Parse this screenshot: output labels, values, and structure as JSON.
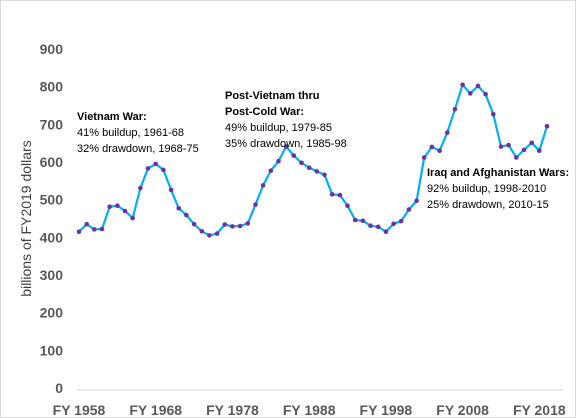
{
  "chart_data": {
    "type": "line",
    "ylabel": "billions of FY2019 dollars",
    "ylim": [
      0,
      900
    ],
    "yticks": [
      0,
      100,
      200,
      300,
      400,
      500,
      600,
      700,
      800,
      900
    ],
    "xlim": [
      1958,
      2019
    ],
    "xticks": [
      {
        "value": 1958,
        "label": "FY 1958"
      },
      {
        "value": 1968,
        "label": "FY 1968"
      },
      {
        "value": 1978,
        "label": "FY 1978"
      },
      {
        "value": 1988,
        "label": "FY 1988"
      },
      {
        "value": 1998,
        "label": "FY 1998"
      },
      {
        "value": 2008,
        "label": "FY 2008"
      },
      {
        "value": 2018,
        "label": "FY 2018"
      }
    ],
    "grid": false,
    "series": [
      {
        "color": "#00b0f0",
        "marker_color": "#7030a0",
        "x": [
          1958,
          1959,
          1960,
          1961,
          1962,
          1963,
          1964,
          1965,
          1966,
          1967,
          1968,
          1969,
          1970,
          1971,
          1972,
          1973,
          1974,
          1975,
          1976,
          1977,
          1978,
          1979,
          1980,
          1981,
          1982,
          1983,
          1984,
          1985,
          1986,
          1987,
          1988,
          1989,
          1990,
          1991,
          1992,
          1993,
          1994,
          1995,
          1996,
          1997,
          1998,
          1999,
          2000,
          2001,
          2002,
          2003,
          2004,
          2005,
          2006,
          2007,
          2008,
          2009,
          2010,
          2011,
          2012,
          2013,
          2014,
          2015,
          2016,
          2017,
          2018,
          2019
        ],
        "y": [
          415,
          435,
          421,
          422,
          481,
          484,
          470,
          451,
          531,
          583,
          595,
          579,
          526,
          477,
          459,
          435,
          416,
          405,
          410,
          434,
          429,
          430,
          437,
          487,
          538,
          577,
          602,
          641,
          617,
          598,
          585,
          575,
          566,
          514,
          512,
          484,
          446,
          444,
          431,
          428,
          415,
          436,
          443,
          474,
          497,
          612,
          640,
          630,
          678,
          740,
          805,
          782,
          802,
          780,
          727,
          641,
          645,
          612,
          632,
          651,
          630,
          695
        ]
      }
    ],
    "annotations": [
      {
        "title_lines": [
          "Vietnam War:"
        ],
        "lines": [
          "41% buildup, 1961-68",
          "32% drawdown, 1968-75"
        ]
      },
      {
        "title_lines": [
          "Post-Vietnam thru",
          "Post-Cold War:"
        ],
        "lines": [
          "49% buildup, 1979-85",
          "35% drawdown, 1985-98"
        ]
      },
      {
        "title_lines": [
          "Iraq and Afghanistan Wars:"
        ],
        "lines": [
          "92% buildup, 1998-2010",
          "25% drawdown, 2010-15"
        ]
      }
    ]
  }
}
